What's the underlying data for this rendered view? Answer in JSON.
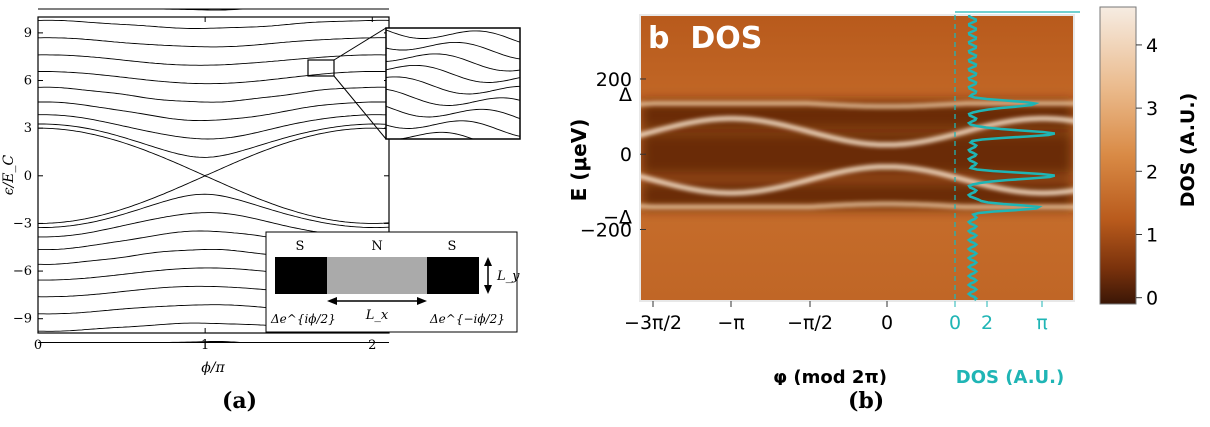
{
  "captions": {
    "a": "(a)",
    "b": "(b)"
  },
  "chart_data": [
    {
      "type": "line",
      "panel": "(a)",
      "xlabel": "ϕ/π",
      "ylabel": "ϵ/E_C",
      "xlim": [
        0,
        2.1
      ],
      "ylim": [
        -9.9,
        10
      ],
      "x_ticks": [
        0,
        1,
        2
      ],
      "y_ticks": [
        -9,
        -6,
        -3,
        0,
        3,
        6,
        9
      ],
      "grid": false,
      "series": [
        {
          "band_gap_edge_at_phi0": 3.0,
          "level_spacing": 0.33,
          "min_gap_at_phi1": 0.0
        }
      ],
      "inset_schematic": {
        "labels": {
          "left": "S",
          "middle": "N",
          "right": "S",
          "length": "L_x",
          "width": "L_y",
          "left_phase": "Δe^{iϕ/2}",
          "right_phase": "Δe^{−iϕ/2}"
        }
      }
    },
    {
      "type": "heatmap",
      "panel": "(b)",
      "title": "b  DOS",
      "xlabel": "φ (mod 2π)",
      "ylabel": "E (μeV)",
      "x_tick_labels": [
        "−3π/2",
        "−π",
        "−π/2",
        "0"
      ],
      "y_ticks": [
        -200,
        0,
        200
      ],
      "y_extra_labels": [
        "Δ",
        "−Δ"
      ],
      "ylim": [
        -390,
        370
      ],
      "colorbar": {
        "label": "DOS (A.U.)",
        "ticks": [
          0,
          1,
          2,
          3,
          4
        ],
        "range": [
          -0.1,
          4.6
        ]
      },
      "dos_profile": {
        "xlabel": "DOS (A.U.)",
        "x_tick_labels": [
          "0",
          "2",
          "π"
        ],
        "color": "#1fb5b5",
        "peak_energies": [
          133,
          55,
          -58,
          -141
        ]
      },
      "branches": {
        "upper_gap_edge": 135,
        "lower_gap_edge": -140,
        "andreev_max": 95,
        "andreev_min": 25
      }
    }
  ]
}
